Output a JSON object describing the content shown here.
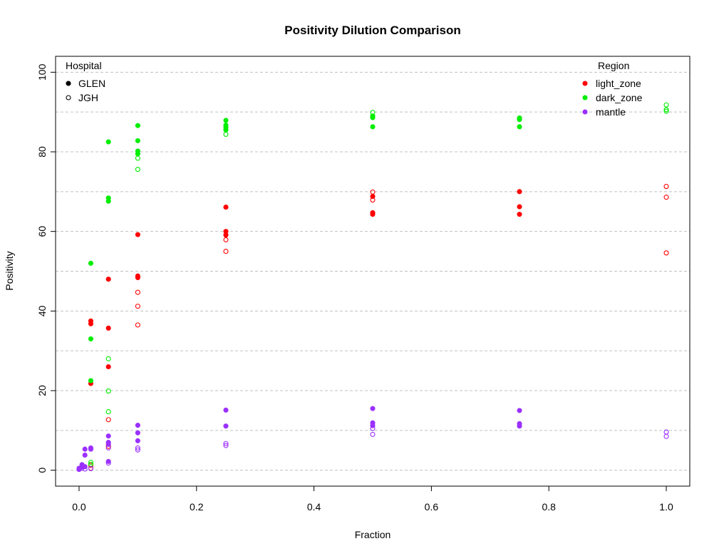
{
  "chart_data": {
    "type": "scatter",
    "title": "Positivity Dilution Comparison",
    "xlabel": "Fraction",
    "ylabel": "Positivity",
    "xlim": [
      -0.04,
      1.04
    ],
    "ylim": [
      -4.0,
      104.0
    ],
    "x_ticks": [
      0.0,
      0.2,
      0.4,
      0.6,
      0.8,
      1.0
    ],
    "x_tick_labels": [
      "0.0",
      "0.2",
      "0.4",
      "0.6",
      "0.8",
      "1.0"
    ],
    "y_ticks": [
      0,
      20,
      40,
      60,
      80,
      100
    ],
    "y_tick_labels": [
      "0",
      "20",
      "40",
      "60",
      "80",
      "100"
    ],
    "grid": "horizontal dashed, every 10 units",
    "legend_hospital": {
      "title": "Hospital",
      "placement": "top-left",
      "entries": [
        {
          "label": "GLEN",
          "marker": "filled"
        },
        {
          "label": "JGH",
          "marker": "open"
        }
      ]
    },
    "legend_region": {
      "title": "Region",
      "placement": "top-right",
      "entries": [
        {
          "label": "light_zone",
          "color": "#ff0000"
        },
        {
          "label": "dark_zone",
          "color": "#00ee00"
        },
        {
          "label": "mantle",
          "color": "#9b30ff"
        }
      ]
    },
    "series": [
      {
        "region": "light_zone",
        "hospital": "GLEN",
        "color": "#ff0000",
        "filled": true,
        "x": [
          0.02,
          0.02,
          0.02,
          0.05,
          0.05,
          0.05,
          0.1,
          0.1,
          0.1,
          0.25,
          0.25,
          0.25,
          0.5,
          0.5,
          0.5,
          0.75,
          0.75,
          0.75
        ],
        "y": [
          37.5,
          36.8,
          21.8,
          48.0,
          35.7,
          26.0,
          59.2,
          48.8,
          48.4,
          66.1,
          60.0,
          59.1,
          68.8,
          64.7,
          64.3,
          70.0,
          66.2,
          64.3
        ]
      },
      {
        "region": "light_zone",
        "hospital": "JGH",
        "color": "#ff0000",
        "filled": false,
        "x": [
          0.02,
          0.02,
          0.05,
          0.05,
          0.1,
          0.1,
          0.1,
          0.25,
          0.25,
          0.5,
          0.5,
          1.0,
          1.0,
          1.0
        ],
        "y": [
          1.2,
          0.5,
          12.7,
          6.0,
          44.7,
          41.2,
          36.5,
          57.9,
          55.0,
          69.9,
          67.9,
          71.3,
          68.6,
          54.6
        ]
      },
      {
        "region": "dark_zone",
        "hospital": "GLEN",
        "color": "#00ee00",
        "filled": true,
        "x": [
          0.02,
          0.02,
          0.02,
          0.05,
          0.05,
          0.05,
          0.1,
          0.1,
          0.1,
          0.1,
          0.25,
          0.25,
          0.25,
          0.25,
          0.5,
          0.5,
          0.5,
          0.75,
          0.75,
          0.75
        ],
        "y": [
          52.0,
          33.0,
          22.5,
          82.5,
          68.4,
          67.6,
          86.6,
          82.8,
          80.2,
          79.5,
          87.9,
          86.7,
          86.1,
          85.5,
          89.0,
          88.6,
          86.3,
          88.5,
          88.1,
          86.3
        ]
      },
      {
        "region": "dark_zone",
        "hospital": "JGH",
        "color": "#00ee00",
        "filled": false,
        "x": [
          0.02,
          0.02,
          0.05,
          0.05,
          0.05,
          0.1,
          0.1,
          0.25,
          0.5,
          1.0,
          1.0,
          1.0
        ],
        "y": [
          2.0,
          1.5,
          28.0,
          19.9,
          14.7,
          78.4,
          75.6,
          84.4,
          89.9,
          91.8,
          90.6,
          90.2
        ]
      },
      {
        "region": "mantle",
        "hospital": "GLEN",
        "color": "#9b30ff",
        "filled": true,
        "x": [
          0.0,
          0.0,
          0.005,
          0.005,
          0.01,
          0.01,
          0.01,
          0.02,
          0.02,
          0.05,
          0.05,
          0.05,
          0.05,
          0.1,
          0.1,
          0.1,
          0.25,
          0.25,
          0.5,
          0.5,
          0.5,
          0.75,
          0.75,
          0.75
        ],
        "y": [
          0.5,
          0.2,
          1.4,
          0.8,
          5.3,
          3.8,
          0.9,
          5.6,
          5.3,
          8.6,
          7.0,
          6.5,
          2.2,
          11.3,
          9.4,
          7.4,
          15.1,
          11.1,
          15.5,
          11.9,
          11.2,
          15.0,
          11.7,
          11.1
        ]
      },
      {
        "region": "mantle",
        "hospital": "JGH",
        "color": "#9b30ff",
        "filled": false,
        "x": [
          0.0,
          0.005,
          0.01,
          0.02,
          0.05,
          0.05,
          0.1,
          0.1,
          0.25,
          0.25,
          0.5,
          0.5,
          1.0,
          1.0
        ],
        "y": [
          0.2,
          0.5,
          0.3,
          0.4,
          5.6,
          1.8,
          5.6,
          5.1,
          6.7,
          6.2,
          10.5,
          9.0,
          9.6,
          8.5
        ]
      }
    ]
  }
}
